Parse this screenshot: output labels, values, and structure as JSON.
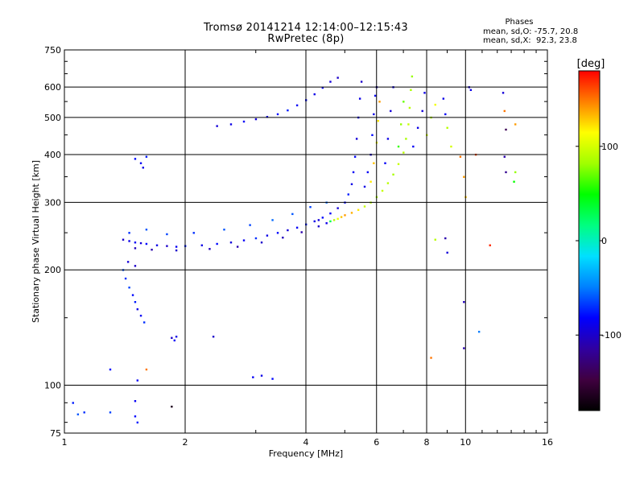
{
  "header": {
    "title": "Tromsø 20141214 12:14:00–12:15:43",
    "subtitle": "RwPretec (8p)"
  },
  "stats": {
    "heading": "Phases",
    "line_o": "mean, sd,O: -75.7, 20.8",
    "line_x": "mean, sd,X:  92.3, 23.8"
  },
  "colorbar": {
    "unit": "[deg]",
    "ticks": [
      100,
      0,
      -100
    ],
    "range": [
      -180,
      180
    ],
    "colors": [
      "#000000",
      "#400040",
      "#3000a0",
      "#0000ff",
      "#0080ff",
      "#00e0ff",
      "#00ff80",
      "#00ff00",
      "#a0ff00",
      "#ffff00",
      "#ff8000",
      "#ff0000"
    ]
  },
  "chart_data": {
    "type": "scatter",
    "xlabel": "Frequency [MHz]",
    "ylabel": "Stationary phase Virtual Height [km]",
    "xscale": "log",
    "yscale": "log",
    "xlim": [
      1,
      16
    ],
    "ylim": [
      75,
      750
    ],
    "xticks": [
      1,
      2,
      4,
      6,
      8,
      10,
      16
    ],
    "yticks": [
      75,
      100,
      200,
      300,
      400,
      500,
      600,
      750
    ],
    "grid": true,
    "points": [
      {
        "x": 1.4,
        "y": 240,
        "phase": -100
      },
      {
        "x": 1.45,
        "y": 238,
        "phase": -90
      },
      {
        "x": 1.5,
        "y": 236,
        "phase": -85
      },
      {
        "x": 1.55,
        "y": 235,
        "phase": -95
      },
      {
        "x": 1.6,
        "y": 234,
        "phase": -80
      },
      {
        "x": 1.7,
        "y": 232,
        "phase": -90
      },
      {
        "x": 1.8,
        "y": 231,
        "phase": -100
      },
      {
        "x": 1.9,
        "y": 230,
        "phase": -85
      },
      {
        "x": 2.0,
        "y": 231,
        "phase": -75
      },
      {
        "x": 2.2,
        "y": 232,
        "phase": -90
      },
      {
        "x": 2.4,
        "y": 234,
        "phase": -80
      },
      {
        "x": 2.6,
        "y": 236,
        "phase": -95
      },
      {
        "x": 2.8,
        "y": 239,
        "phase": -85
      },
      {
        "x": 3.0,
        "y": 242,
        "phase": -70
      },
      {
        "x": 3.2,
        "y": 246,
        "phase": -90
      },
      {
        "x": 3.4,
        "y": 250,
        "phase": -80
      },
      {
        "x": 3.6,
        "y": 254,
        "phase": -95
      },
      {
        "x": 3.8,
        "y": 258,
        "phase": -85
      },
      {
        "x": 4.0,
        "y": 263,
        "phase": -75
      },
      {
        "x": 4.2,
        "y": 268,
        "phase": -90
      },
      {
        "x": 4.4,
        "y": 274,
        "phase": -80
      },
      {
        "x": 4.6,
        "y": 281,
        "phase": -85
      },
      {
        "x": 4.8,
        "y": 290,
        "phase": -95
      },
      {
        "x": 5.0,
        "y": 300,
        "phase": -80
      },
      {
        "x": 5.1,
        "y": 315,
        "phase": -75
      },
      {
        "x": 5.2,
        "y": 335,
        "phase": -90
      },
      {
        "x": 5.25,
        "y": 360,
        "phase": -85
      },
      {
        "x": 5.3,
        "y": 395,
        "phase": -80
      },
      {
        "x": 5.35,
        "y": 440,
        "phase": -95
      },
      {
        "x": 5.4,
        "y": 500,
        "phase": -85
      },
      {
        "x": 5.45,
        "y": 560,
        "phase": -90
      },
      {
        "x": 5.5,
        "y": 620,
        "phase": -100
      },
      {
        "x": 1.45,
        "y": 250,
        "phase": -70
      },
      {
        "x": 1.6,
        "y": 255,
        "phase": -60
      },
      {
        "x": 1.8,
        "y": 248,
        "phase": -65
      },
      {
        "x": 2.1,
        "y": 250,
        "phase": -70
      },
      {
        "x": 2.5,
        "y": 255,
        "phase": -60
      },
      {
        "x": 2.9,
        "y": 262,
        "phase": -65
      },
      {
        "x": 3.3,
        "y": 270,
        "phase": -55
      },
      {
        "x": 3.7,
        "y": 280,
        "phase": -60
      },
      {
        "x": 4.1,
        "y": 292,
        "phase": -65
      },
      {
        "x": 4.5,
        "y": 300,
        "phase": -55
      },
      {
        "x": 1.5,
        "y": 228,
        "phase": -105
      },
      {
        "x": 1.65,
        "y": 226,
        "phase": -110
      },
      {
        "x": 1.9,
        "y": 225,
        "phase": -100
      },
      {
        "x": 2.3,
        "y": 227,
        "phase": -105
      },
      {
        "x": 2.7,
        "y": 230,
        "phase": -110
      },
      {
        "x": 3.1,
        "y": 236,
        "phase": -100
      },
      {
        "x": 3.5,
        "y": 243,
        "phase": -105
      },
      {
        "x": 3.9,
        "y": 251,
        "phase": -110
      },
      {
        "x": 4.3,
        "y": 260,
        "phase": -100
      },
      {
        "x": 4.3,
        "y": 270,
        "phase": -95
      },
      {
        "x": 4.5,
        "y": 265,
        "phase": -90
      },
      {
        "x": 4.6,
        "y": 268,
        "phase": 30
      },
      {
        "x": 4.7,
        "y": 270,
        "phase": 90
      },
      {
        "x": 4.8,
        "y": 272,
        "phase": 110
      },
      {
        "x": 4.9,
        "y": 275,
        "phase": 130
      },
      {
        "x": 5.0,
        "y": 278,
        "phase": 140
      },
      {
        "x": 5.2,
        "y": 282,
        "phase": 135
      },
      {
        "x": 5.4,
        "y": 287,
        "phase": 120
      },
      {
        "x": 5.6,
        "y": 293,
        "phase": 95
      },
      {
        "x": 5.8,
        "y": 300,
        "phase": 90
      },
      {
        "x": 6.0,
        "y": 310,
        "phase": 85
      },
      {
        "x": 6.2,
        "y": 322,
        "phase": 95
      },
      {
        "x": 6.4,
        "y": 337,
        "phase": 90
      },
      {
        "x": 6.6,
        "y": 355,
        "phase": 85
      },
      {
        "x": 6.8,
        "y": 378,
        "phase": 95
      },
      {
        "x": 7.0,
        "y": 405,
        "phase": 90
      },
      {
        "x": 7.1,
        "y": 440,
        "phase": 85
      },
      {
        "x": 7.2,
        "y": 480,
        "phase": 95
      },
      {
        "x": 7.25,
        "y": 530,
        "phase": 90
      },
      {
        "x": 7.3,
        "y": 590,
        "phase": 85
      },
      {
        "x": 7.35,
        "y": 640,
        "phase": 80
      },
      {
        "x": 5.6,
        "y": 330,
        "phase": -90
      },
      {
        "x": 5.7,
        "y": 360,
        "phase": -85
      },
      {
        "x": 5.8,
        "y": 400,
        "phase": -95
      },
      {
        "x": 5.85,
        "y": 450,
        "phase": -80
      },
      {
        "x": 5.9,
        "y": 510,
        "phase": -90
      },
      {
        "x": 5.95,
        "y": 570,
        "phase": -85
      },
      {
        "x": 6.0,
        "y": 600,
        "phase": -95
      },
      {
        "x": 5.8,
        "y": 340,
        "phase": 120
      },
      {
        "x": 5.9,
        "y": 380,
        "phase": 130
      },
      {
        "x": 6.0,
        "y": 430,
        "phase": 110
      },
      {
        "x": 6.05,
        "y": 490,
        "phase": 120
      },
      {
        "x": 6.1,
        "y": 550,
        "phase": 140
      },
      {
        "x": 6.3,
        "y": 380,
        "phase": -85
      },
      {
        "x": 6.4,
        "y": 440,
        "phase": -90
      },
      {
        "x": 6.5,
        "y": 520,
        "phase": -95
      },
      {
        "x": 6.6,
        "y": 600,
        "phase": -90
      },
      {
        "x": 6.8,
        "y": 420,
        "phase": 60
      },
      {
        "x": 6.9,
        "y": 480,
        "phase": 80
      },
      {
        "x": 7.0,
        "y": 550,
        "phase": 70
      },
      {
        "x": 7.4,
        "y": 420,
        "phase": -85
      },
      {
        "x": 7.6,
        "y": 470,
        "phase": -90
      },
      {
        "x": 7.8,
        "y": 520,
        "phase": -95
      },
      {
        "x": 7.9,
        "y": 580,
        "phase": -90
      },
      {
        "x": 8.0,
        "y": 450,
        "phase": 100
      },
      {
        "x": 8.2,
        "y": 500,
        "phase": 90
      },
      {
        "x": 8.4,
        "y": 540,
        "phase": 110
      },
      {
        "x": 8.8,
        "y": 560,
        "phase": -90
      },
      {
        "x": 8.9,
        "y": 510,
        "phase": -85
      },
      {
        "x": 9.0,
        "y": 470,
        "phase": 90
      },
      {
        "x": 9.2,
        "y": 420,
        "phase": 100
      },
      {
        "x": 2.4,
        "y": 475,
        "phase": -95
      },
      {
        "x": 2.6,
        "y": 480,
        "phase": -90
      },
      {
        "x": 2.8,
        "y": 488,
        "phase": -85
      },
      {
        "x": 3.0,
        "y": 495,
        "phase": -95
      },
      {
        "x": 3.2,
        "y": 502,
        "phase": -90
      },
      {
        "x": 3.4,
        "y": 510,
        "phase": -80
      },
      {
        "x": 3.6,
        "y": 522,
        "phase": -75
      },
      {
        "x": 3.8,
        "y": 538,
        "phase": -85
      },
      {
        "x": 4.0,
        "y": 555,
        "phase": -80
      },
      {
        "x": 4.2,
        "y": 575,
        "phase": -90
      },
      {
        "x": 4.4,
        "y": 598,
        "phase": -85
      },
      {
        "x": 4.6,
        "y": 620,
        "phase": -95
      },
      {
        "x": 4.8,
        "y": 635,
        "phase": -100
      },
      {
        "x": 1.5,
        "y": 390,
        "phase": -80
      },
      {
        "x": 1.55,
        "y": 380,
        "phase": -85
      },
      {
        "x": 1.6,
        "y": 395,
        "phase": -75
      },
      {
        "x": 1.57,
        "y": 370,
        "phase": -90
      },
      {
        "x": 1.4,
        "y": 200,
        "phase": -60
      },
      {
        "x": 1.42,
        "y": 190,
        "phase": -70
      },
      {
        "x": 1.45,
        "y": 180,
        "phase": -65
      },
      {
        "x": 1.48,
        "y": 172,
        "phase": -80
      },
      {
        "x": 1.5,
        "y": 165,
        "phase": -75
      },
      {
        "x": 1.52,
        "y": 158,
        "phase": -90
      },
      {
        "x": 1.55,
        "y": 152,
        "phase": -85
      },
      {
        "x": 1.58,
        "y": 146,
        "phase": -70
      },
      {
        "x": 1.44,
        "y": 210,
        "phase": -95
      },
      {
        "x": 1.5,
        "y": 205,
        "phase": -100
      },
      {
        "x": 1.85,
        "y": 133,
        "phase": -100
      },
      {
        "x": 1.88,
        "y": 131,
        "phase": -85
      },
      {
        "x": 1.9,
        "y": 134,
        "phase": -90
      },
      {
        "x": 2.35,
        "y": 134,
        "phase": -100
      },
      {
        "x": 2.95,
        "y": 105,
        "phase": -85
      },
      {
        "x": 3.1,
        "y": 106,
        "phase": -90
      },
      {
        "x": 3.3,
        "y": 104,
        "phase": -80
      },
      {
        "x": 1.52,
        "y": 103,
        "phase": -85
      },
      {
        "x": 1.6,
        "y": 110,
        "phase": 150
      },
      {
        "x": 1.3,
        "y": 110,
        "phase": -80
      },
      {
        "x": 1.05,
        "y": 90,
        "phase": -75
      },
      {
        "x": 1.08,
        "y": 84,
        "phase": -60
      },
      {
        "x": 1.12,
        "y": 85,
        "phase": -70
      },
      {
        "x": 1.3,
        "y": 85,
        "phase": -65
      },
      {
        "x": 1.5,
        "y": 83,
        "phase": -80
      },
      {
        "x": 1.52,
        "y": 80,
        "phase": -75
      },
      {
        "x": 1.5,
        "y": 91,
        "phase": -85
      },
      {
        "x": 1.85,
        "y": 88,
        "phase": -165
      },
      {
        "x": 9.7,
        "y": 395,
        "phase": 150
      },
      {
        "x": 9.9,
        "y": 350,
        "phase": 140
      },
      {
        "x": 10.0,
        "y": 310,
        "phase": 130
      },
      {
        "x": 10.6,
        "y": 400,
        "phase": 160
      },
      {
        "x": 10.2,
        "y": 600,
        "phase": -95
      },
      {
        "x": 10.3,
        "y": 590,
        "phase": -90
      },
      {
        "x": 9.9,
        "y": 165,
        "phase": -105
      },
      {
        "x": 9.9,
        "y": 125,
        "phase": -110
      },
      {
        "x": 10.8,
        "y": 138,
        "phase": -50
      },
      {
        "x": 8.4,
        "y": 240,
        "phase": 90
      },
      {
        "x": 8.2,
        "y": 118,
        "phase": 150
      },
      {
        "x": 8.9,
        "y": 242,
        "phase": -110
      },
      {
        "x": 9.0,
        "y": 222,
        "phase": -95
      },
      {
        "x": 11.5,
        "y": 232,
        "phase": 170
      },
      {
        "x": 12.4,
        "y": 580,
        "phase": -95
      },
      {
        "x": 12.5,
        "y": 520,
        "phase": 150
      },
      {
        "x": 12.6,
        "y": 465,
        "phase": -140
      },
      {
        "x": 12.5,
        "y": 395,
        "phase": -110
      },
      {
        "x": 12.6,
        "y": 360,
        "phase": -120
      },
      {
        "x": 13.3,
        "y": 480,
        "phase": 140
      },
      {
        "x": 13.3,
        "y": 360,
        "phase": 80
      },
      {
        "x": 13.2,
        "y": 340,
        "phase": 50
      }
    ]
  }
}
